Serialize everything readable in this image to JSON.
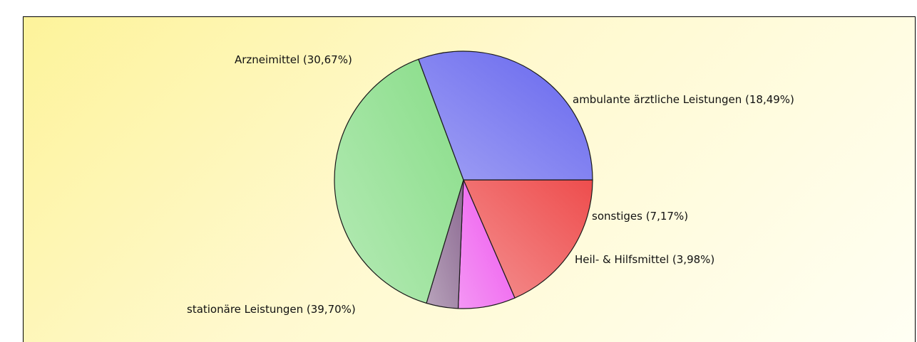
{
  "chart_data": {
    "type": "pie",
    "title": "",
    "slices": [
      {
        "label": "ambulante ärztliche Leistungen",
        "value": 18.49,
        "display": "ambulante ärztliche Leistungen (18,49%)",
        "color": "#ee4d4d"
      },
      {
        "label": "sonstiges",
        "value": 7.17,
        "display": "sonstiges (7,17%)",
        "color": "#ee55ee"
      },
      {
        "label": "Heil- & Hilfsmittel",
        "value": 3.98,
        "display": "Heil- & Hilfsmittel (3,98%)",
        "color": "#8c6a92"
      },
      {
        "label": "stationäre Leistungen",
        "value": 39.7,
        "display": "stationäre Leistungen (39,70%)",
        "color": "#88dd88"
      },
      {
        "label": "Arzneimittel",
        "value": 30.67,
        "display": "Arzneimittel (30,67%)",
        "color": "#6666ee"
      }
    ],
    "start_angle_deg": 0,
    "direction": "clockwise",
    "legend": "none",
    "data_labels": "outside"
  }
}
